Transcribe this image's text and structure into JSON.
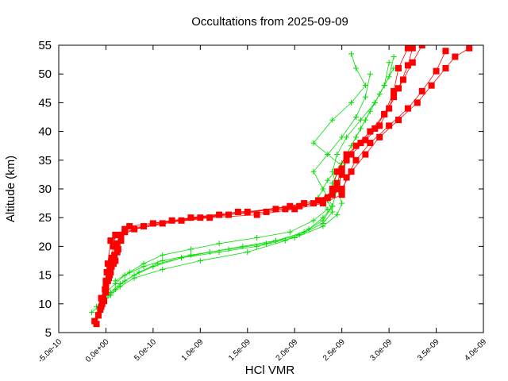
{
  "chart_data": {
    "type": "scatter",
    "title": "Occultations from 2025-09-09",
    "xlabel": "HCl VMR",
    "ylabel": "Altitude (km)",
    "xlim": [
      -5e-10,
      4e-09
    ],
    "ylim": [
      5,
      55
    ],
    "x_tick_labels": [
      "-5.0e-10",
      "0.0e+00",
      "5.0e-10",
      "1.0e-09",
      "1.5e-09",
      "2.0e-09",
      "2.5e-09",
      "3.0e-09",
      "3.5e-09",
      "4.0e-09"
    ],
    "x_tick_values": [
      -5e-10,
      0,
      5e-10,
      1e-09,
      1.5e-09,
      2e-09,
      2.5e-09,
      3e-09,
      3.5e-09,
      4e-09
    ],
    "y_tick_labels": [
      "5",
      "10",
      "15",
      "20",
      "25",
      "30",
      "35",
      "40",
      "45",
      "50",
      "55"
    ],
    "y_tick_values": [
      5,
      10,
      15,
      20,
      25,
      30,
      35,
      40,
      45,
      50,
      55
    ],
    "grid": false,
    "legend": "none",
    "series": [
      {
        "color": "#ff0000",
        "marker": "square",
        "profiles": [
          {
            "x": [
              -1e-10,
              -8e-11,
              -5e-11,
              -3e-11,
              -1e-11,
              0,
              1e-11,
              2e-11,
              5e-11,
              3e-10,
              8e-10,
              1.3e-09,
              1.8e-09,
              2.1e-09,
              2.35e-09,
              2.4e-09,
              2.45e-09,
              2.55e-09,
              2.7e-09,
              2.85e-09,
              2.95e-09,
              3.05e-09,
              3.1e-09,
              3.2e-09
            ],
            "y": [
              6.5,
              8,
              9.5,
              11,
              12.5,
              14,
              15.5,
              17,
              21,
              23,
              24.5,
              25.5,
              26.5,
              27.5,
              28.5,
              30,
              33,
              36,
              38,
              40.5,
              43,
              47,
              51,
              54.5
            ]
          },
          {
            "x": [
              -1.2e-10,
              -6e-11,
              -2e-11,
              0,
              2e-11,
              4e-11,
              6e-11,
              8e-11,
              1e-10,
              4e-10,
              9e-10,
              1.4e-09,
              1.9e-09,
              2.2e-09,
              2.4e-09,
              2.45e-09,
              2.5e-09,
              2.6e-09,
              2.75e-09,
              2.9e-09,
              3e-09,
              3.1e-09,
              3.2e-09,
              3.25e-09
            ],
            "y": [
              7,
              9,
              10.5,
              12,
              14,
              16,
              18,
              20,
              22,
              23.5,
              25,
              26,
              26.5,
              27.5,
              29,
              31,
              33.5,
              36,
              38.5,
              41,
              44,
              47.5,
              51.5,
              54.5
            ]
          },
          {
            "x": [
              -8e-11,
              -4e-11,
              0,
              3e-11,
              6e-11,
              9e-11,
              1.2e-10,
              1.5e-10,
              5e-10,
              1e-09,
              1.5e-09,
              1.95e-09,
              2.25e-09,
              2.45e-09,
              2.5e-09,
              2.55e-09,
              2.65e-09,
              2.8e-09,
              2.95e-09,
              3.05e-09,
              3.15e-09,
              3.25e-09,
              3.35e-09
            ],
            "y": [
              8,
              10,
              12.5,
              14.5,
              16.5,
              18.5,
              20.5,
              22,
              24,
              25,
              26,
              27,
              28,
              30,
              32.5,
              35,
              37.5,
              40,
              43,
              46,
              49,
              52,
              55
            ]
          },
          {
            "x": [
              -5e-11,
              0,
              5e-11,
              1e-10,
              1.3e-10,
              1.6e-10,
              2e-10,
              6e-10,
              1.1e-09,
              1.6e-09,
              2e-09,
              2.3e-09,
              2.5e-09,
              2.55e-09,
              2.65e-09,
              2.8e-09,
              3e-09,
              3.2e-09,
              3.35e-09,
              3.5e-09,
              3.6e-09
            ],
            "y": [
              11,
              13.5,
              15.5,
              17.5,
              19.5,
              21.5,
              23,
              24,
              25,
              25.5,
              26.5,
              27.5,
              29,
              32,
              35,
              38,
              41,
              44,
              47,
              50.5,
              54
            ]
          },
          {
            "x": [
              0,
              4e-11,
              8e-11,
              1.2e-10,
              1.6e-10,
              2e-10,
              2.5e-10,
              7e-10,
              1.2e-09,
              1.7e-09,
              2.05e-09,
              2.3e-09,
              2.5e-09,
              2.6e-09,
              2.75e-09,
              2.9e-09,
              3.1e-09,
              3.3e-09,
              3.45e-09,
              3.6e-09,
              3.7e-09,
              3.85e-09
            ],
            "y": [
              13,
              15,
              17,
              19,
              21,
              22.5,
              23.5,
              24.5,
              25.5,
              26,
              27,
              28,
              30,
              33,
              36,
              39,
              42,
              45,
              48,
              51,
              53,
              54.5
            ]
          }
        ]
      },
      {
        "color": "#00dd00",
        "marker": "plus",
        "profiles": [
          {
            "x": [
              -1.5e-10,
              -5e-11,
              5e-11,
              1.5e-10,
              3e-10,
              6e-10,
              1e-09,
              1.5e-09,
              1.9e-09,
              2.15e-09,
              2.3e-09,
              2.4e-09,
              2.45e-09,
              2.5e-09,
              2.55e-09,
              2.65e-09,
              2.75e-09,
              2.85e-09,
              2.95e-09,
              3e-09
            ],
            "y": [
              8.5,
              10,
              11.5,
              13,
              14.5,
              16,
              17.5,
              19,
              21,
              23,
              25,
              27,
              30,
              33,
              36,
              39,
              42,
              45,
              48,
              52
            ]
          },
          {
            "x": [
              -5e-11,
              5e-11,
              1.5e-10,
              3e-10,
              5e-10,
              8e-10,
              1.2e-09,
              1.6e-09,
              2e-09,
              2.3e-09,
              2.45e-09,
              2.5e-09,
              2.45e-09,
              2.4e-09,
              2.45e-09,
              2.55e-09,
              2.7e-09,
              2.85e-09,
              2.95e-09,
              3.05e-09
            ],
            "y": [
              10.5,
              12,
              13.5,
              15,
              16.5,
              18,
              19,
              20,
              21.5,
              23.5,
              25.5,
              27.5,
              30,
              33,
              36,
              39,
              42,
              45,
              48,
              51
            ]
          },
          {
            "x": [
              0,
              1e-10,
              2e-10,
              4e-10,
              6e-10,
              9e-10,
              1.3e-09,
              1.7e-09,
              2.05e-09,
              2.3e-09,
              2.4e-09,
              2.35e-09,
              2.4e-09,
              2.5e-09,
              2.2e-09,
              2.4e-09,
              2.6e-09,
              2.75e-09,
              2.65e-09,
              2.6e-09
            ],
            "y": [
              12,
              13.5,
              15,
              16.5,
              17.5,
              18.5,
              19.5,
              20.5,
              22,
              24,
              26,
              28,
              31,
              34,
              38,
              42,
              45,
              48,
              51,
              53.5
            ]
          },
          {
            "x": [
              1e-10,
              2.5e-10,
              4e-10,
              6e-10,
              9e-10,
              1.2e-09,
              1.6e-09,
              1.95e-09,
              2.2e-09,
              2.35e-09,
              2.25e-09,
              2.35e-09,
              2.5e-09,
              2.6e-09,
              2.7e-09,
              2.8e-09,
              2.9e-09,
              3e-09,
              3.05e-09
            ],
            "y": [
              14,
              15.5,
              17,
              18.5,
              19.5,
              20.5,
              21.5,
              22.5,
              24.5,
              26.5,
              28.5,
              31.5,
              34.5,
              37.5,
              40.5,
              43.5,
              46.5,
              49.5,
              53
            ]
          },
          {
            "x": [
              -1e-10,
              0,
              1e-10,
              2e-10,
              3.5e-10,
              5.5e-10,
              8e-10,
              1.1e-09,
              1.45e-09,
              1.8e-09,
              2.1e-09,
              2.3e-09,
              2.4e-09,
              2.3e-09,
              2.2e-09,
              2.35e-09,
              2.5e-09,
              2.65e-09,
              2.75e-09,
              2.8e-09
            ],
            "y": [
              9.5,
              11,
              12.5,
              14,
              15.5,
              17,
              18,
              19,
              20,
              21,
              22.5,
              24.5,
              27,
              30,
              33,
              36,
              39,
              42.5,
              46,
              50
            ]
          }
        ]
      }
    ]
  }
}
